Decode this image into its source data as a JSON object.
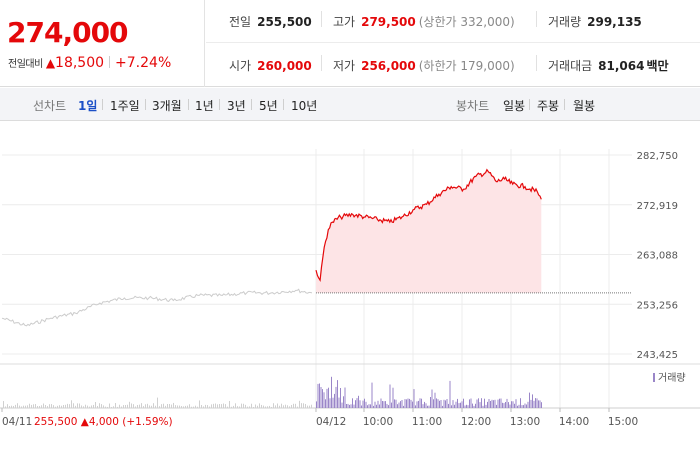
{
  "quote": {
    "price": "274,000",
    "change_label": "전일대비",
    "change_arrow": "▲",
    "change_value": "18,500",
    "change_pct": "+7.24%"
  },
  "stats": {
    "prev_close_label": "전일",
    "prev_close": "255,500",
    "high_label": "고가",
    "high": "279,500",
    "upper_limit": "(상한가 332,000)",
    "volume_label": "거래량",
    "volume": "299,135",
    "open_label": "시가",
    "open": "260,000",
    "low_label": "저가",
    "low": "256,000",
    "lower_limit": "(하한가 179,000)",
    "amount_label": "거래대금",
    "amount": "81,064",
    "amount_unit": "백만"
  },
  "tabs": {
    "line_label": "선차트",
    "line_ranges": [
      "1일",
      "1주일",
      "3개월",
      "1년",
      "3년",
      "5년",
      "10년"
    ],
    "active_index": 0,
    "candle_label": "봉차트",
    "candle_ranges": [
      "일봉",
      "주봉",
      "월봉"
    ]
  },
  "chart": {
    "y_ticks": [
      "282,750",
      "272,919",
      "263,088",
      "253,256",
      "243,425"
    ],
    "x_labels": [
      "04/11",
      "04/12",
      "10:00",
      "11:00",
      "12:00",
      "13:00",
      "14:00",
      "15:00"
    ],
    "prev_day_info": "255,500 ▲4,000 (+1.59%)",
    "prev_day_info_parts": {
      "close": "255,500",
      "arrow": "▲",
      "change": "4,000",
      "pct": "(+1.59%)"
    },
    "volume_legend": "거래량",
    "colors": {
      "up": "#e4080a",
      "fill": "#fde4e6",
      "prev_line": "#cccccc",
      "volume": "#9a86c8",
      "volume_prev": "#d0d0d0"
    }
  },
  "chart_data": {
    "type": "line",
    "title": "",
    "y_range": [
      243425,
      282750
    ],
    "prev_close": 255500,
    "series": [
      {
        "name": "",
        "day": "04/11",
        "x": [
          "09:00",
          "09:30",
          "10:00",
          "10:30",
          "11:00",
          "11:30",
          "12:00",
          "12:30",
          "13:00",
          "13:30",
          "14:00",
          "14:30",
          "15:00",
          "15:20"
        ],
        "values": [
          250500,
          249000,
          250500,
          251500,
          253500,
          254500,
          254500,
          254000,
          255000,
          255000,
          255500,
          255500,
          256000,
          255500
        ]
      },
      {
        "name": "",
        "day": "04/12",
        "x": [
          "09:00",
          "09:05",
          "09:10",
          "09:15",
          "09:20",
          "09:30",
          "09:45",
          "10:00",
          "10:15",
          "10:30",
          "10:45",
          "11:00",
          "11:15",
          "11:30",
          "11:45",
          "12:00",
          "12:15",
          "12:30",
          "12:40",
          "12:50",
          "13:00",
          "13:15",
          "13:30",
          "13:35"
        ],
        "values": [
          260000,
          258000,
          264500,
          268000,
          269500,
          270500,
          271000,
          270500,
          270000,
          269500,
          270500,
          272000,
          273000,
          275000,
          276500,
          276000,
          278500,
          279500,
          277500,
          278000,
          277000,
          276500,
          275500,
          274000
        ]
      }
    ]
  }
}
